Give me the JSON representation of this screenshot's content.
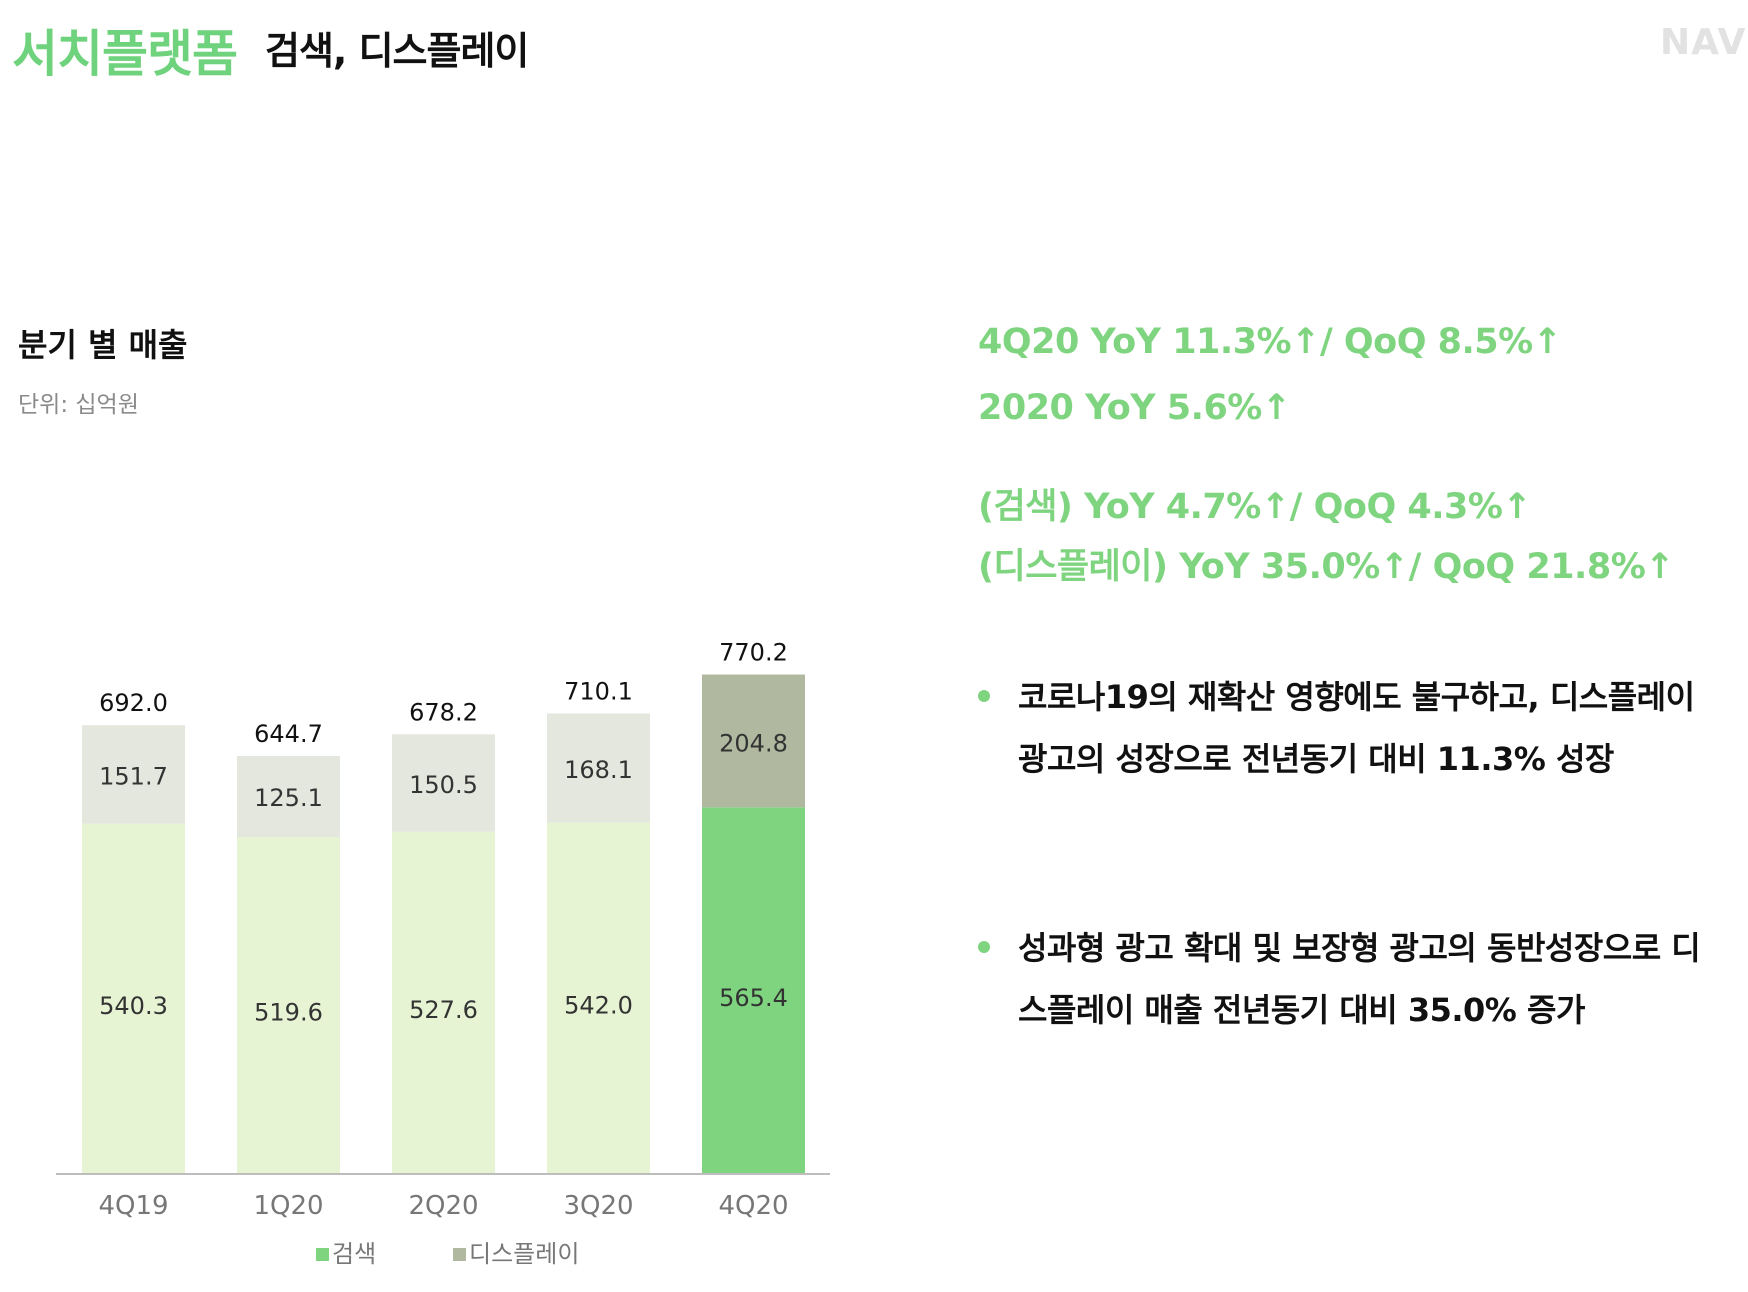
{
  "header": {
    "title_main": "서치플랫폼",
    "title_sub": "검색, 디스플레이",
    "brand": "NAV"
  },
  "chart": {
    "title": "분기 별 매출",
    "unit": "단위: 십억원"
  },
  "highlights": [
    "4Q20 YoY 11.3%↑/ QoQ 8.5%↑",
    "2020 YoY 5.6%↑",
    "(검색) YoY 4.7%↑/ QoQ 4.3%↑",
    "(디스플레이) YoY 35.0%↑/ QoQ 21.8%↑"
  ],
  "bullets": [
    "코로나19의 재확산 영향에도 불구하고, 디스플레이광고의 성장으로 전년동기 대비 11.3% 성장",
    "성과형 광고 확대 및 보장형 광고의 동반성장으로 디스플레이 매출 전년동기 대비 35.0% 증가"
  ],
  "colors": {
    "accent": "#6fd27d",
    "search_light": "#e6f4d4",
    "search_dark": "#7ed47f",
    "display_light": "#e4e7de",
    "display_dark": "#b0b99f",
    "axis": "#bdbdbd"
  },
  "chart_data": {
    "type": "bar",
    "stacked": true,
    "categories": [
      "4Q19",
      "1Q20",
      "2Q20",
      "3Q20",
      "4Q20"
    ],
    "series": [
      {
        "name": "검색",
        "values": [
          540.3,
          519.6,
          527.6,
          542.0,
          565.4
        ]
      },
      {
        "name": "디스플레이",
        "values": [
          151.7,
          125.1,
          150.5,
          168.1,
          204.8
        ]
      }
    ],
    "totals": [
      692.0,
      644.7,
      678.2,
      710.1,
      770.2
    ],
    "highlight_category": "4Q20",
    "ylim": [
      0,
      800
    ],
    "legend_position": "bottom",
    "grid": false
  }
}
